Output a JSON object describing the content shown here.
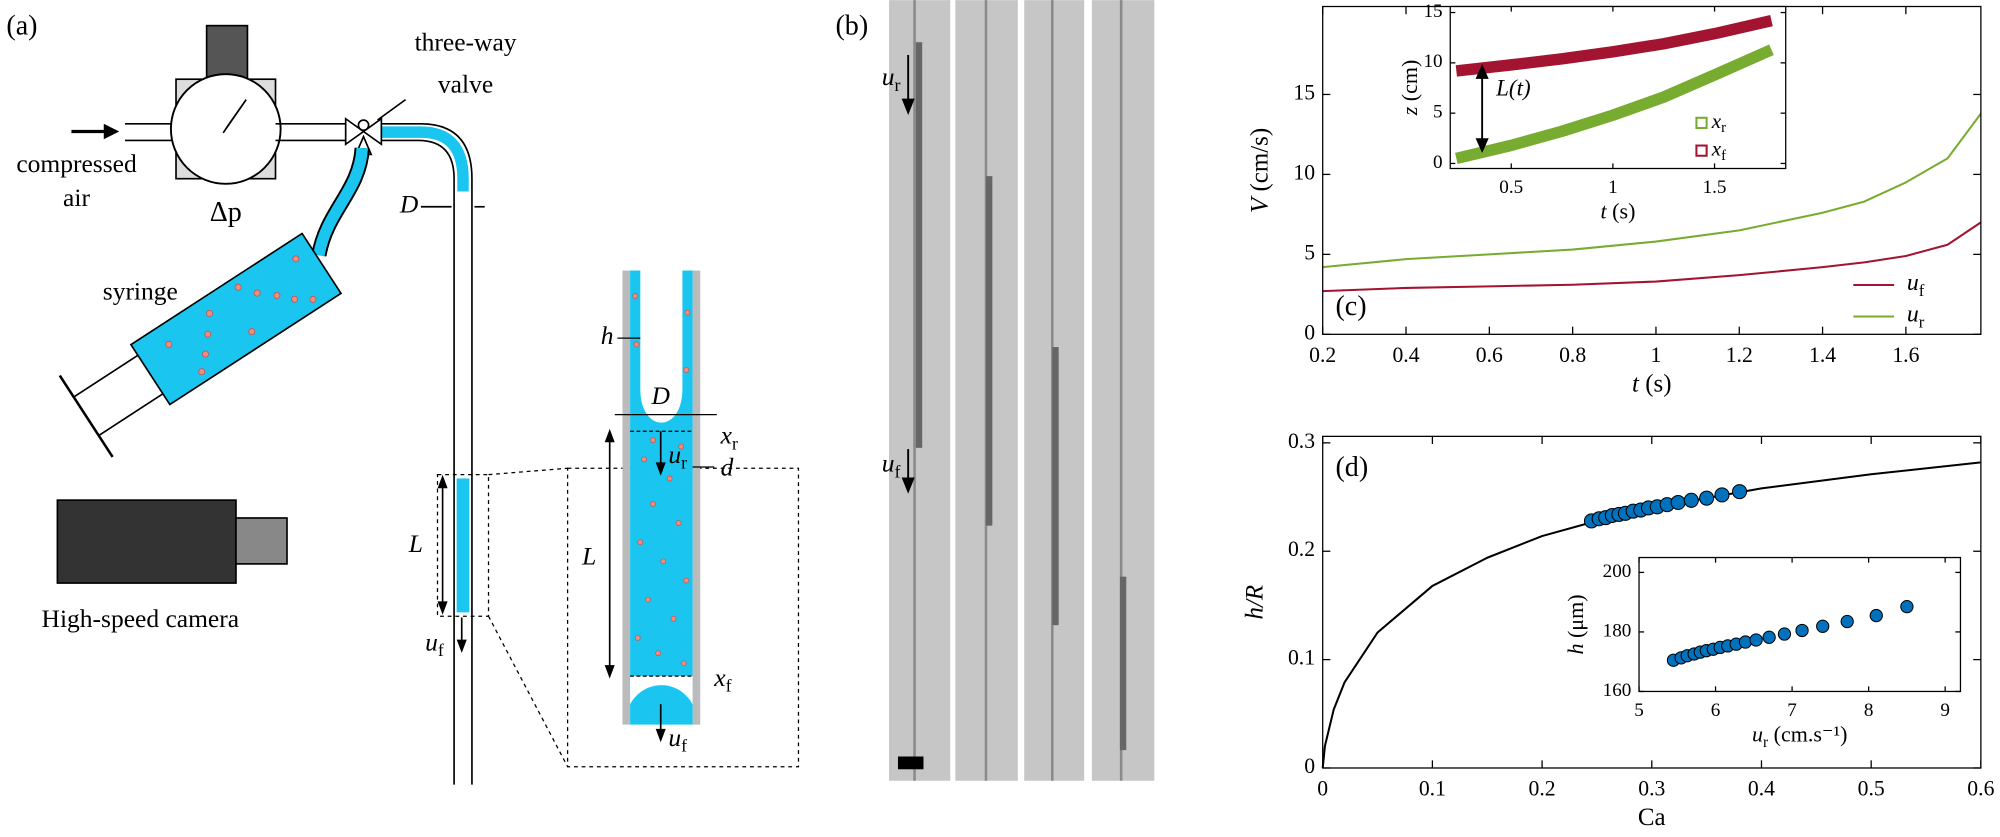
{
  "panel_a": {
    "label": "(a)",
    "compressed_air": [
      "compressed",
      "air"
    ],
    "delta_p": "Δp",
    "valve": [
      "three-way",
      "valve"
    ],
    "syringe": "syringe",
    "camera": "High-speed camera",
    "D": "D",
    "L": "L",
    "u_f": {
      "sym": "u",
      "sub": "f"
    },
    "inset": {
      "h": "h",
      "D": "D",
      "x_r": {
        "sym": "x",
        "sub": "r"
      },
      "u_r": {
        "sym": "u",
        "sub": "r"
      },
      "d": "d",
      "L": "L",
      "x_f": {
        "sym": "x",
        "sub": "f"
      },
      "u_f": {
        "sym": "u",
        "sub": "f"
      }
    }
  },
  "panel_b": {
    "label": "(b)",
    "u_r": {
      "sym": "u",
      "sub": "r"
    },
    "u_f": {
      "sym": "u",
      "sub": "f"
    }
  },
  "chart_data": [
    {
      "type": "line",
      "panel_label": "(c)",
      "xlabel": {
        "sym": "t",
        "unit": "(s)"
      },
      "ylabel": {
        "sym": "V",
        "unit": "(cm/s)"
      },
      "x": [
        0.2,
        0.4,
        0.6,
        0.8,
        1.0,
        1.2,
        1.4,
        1.5,
        1.6,
        1.7,
        1.78
      ],
      "series": [
        {
          "name": {
            "sym": "u",
            "sub": "f"
          },
          "color": "#a2142f",
          "values": [
            2.7,
            2.9,
            3.0,
            3.1,
            3.3,
            3.7,
            4.2,
            4.5,
            4.9,
            5.6,
            7.0
          ]
        },
        {
          "name": {
            "sym": "u",
            "sub": "r"
          },
          "color": "#77ac30",
          "values": [
            4.2,
            4.7,
            5.0,
            5.3,
            5.8,
            6.5,
            7.6,
            8.3,
            9.5,
            11.0,
            13.8
          ]
        }
      ],
      "xlim": [
        0.2,
        1.78
      ],
      "xticks": [
        0.2,
        0.4,
        0.6,
        0.8,
        1,
        1.2,
        1.4,
        1.6
      ],
      "ylim": [
        0,
        20.5
      ],
      "yticks": [
        0,
        5,
        10,
        15
      ],
      "legend": "lower right"
    },
    {
      "type": "line",
      "xlabel": {
        "sym": "t",
        "unit": "(s)"
      },
      "ylabel": {
        "sym": "z",
        "unit": "(cm)"
      },
      "annotation": "L(t)",
      "x": [
        0.23,
        0.5,
        0.75,
        1.0,
        1.25,
        1.5,
        1.78
      ],
      "series": [
        {
          "name": {
            "sym": "x",
            "sub": "r"
          },
          "color": "#77ac30",
          "marker": "square",
          "values": [
            0.5,
            1.8,
            3.2,
            4.8,
            6.6,
            8.8,
            11.3
          ]
        },
        {
          "name": {
            "sym": "x",
            "sub": "f"
          },
          "color": "#a2142f",
          "marker": "square",
          "values": [
            9.2,
            9.8,
            10.4,
            11.1,
            11.9,
            12.9,
            14.2
          ]
        }
      ],
      "xlim": [
        0.2,
        1.85
      ],
      "xticks": [
        0.5,
        1,
        1.5
      ],
      "ylim": [
        -0.5,
        15.6
      ],
      "yticks": [
        0,
        5,
        10,
        15
      ],
      "legend": "lower right"
    },
    {
      "type": "line",
      "panel_label": "(d)",
      "xlabel": {
        "sym": "Ca"
      },
      "ylabel": {
        "sym": "h/R"
      },
      "series": [
        {
          "type": "line",
          "color": "#000000",
          "x": [
            0,
            0.002,
            0.01,
            0.02,
            0.05,
            0.1,
            0.15,
            0.2,
            0.25,
            0.3,
            0.4,
            0.5,
            0.6
          ],
          "values": [
            0,
            0.0202,
            0.0538,
            0.0792,
            0.125,
            0.168,
            0.194,
            0.214,
            0.228,
            0.24,
            0.258,
            0.271,
            0.282
          ]
        },
        {
          "type": "scatter",
          "color": "#0072bd",
          "x": [
            0.245,
            0.252,
            0.258,
            0.264,
            0.27,
            0.276,
            0.283,
            0.29,
            0.297,
            0.305,
            0.314,
            0.324,
            0.336,
            0.35,
            0.364,
            0.38
          ],
          "values": [
            0.228,
            0.23,
            0.231,
            0.233,
            0.234,
            0.235,
            0.237,
            0.238,
            0.24,
            0.241,
            0.243,
            0.245,
            0.247,
            0.249,
            0.252,
            0.255
          ]
        }
      ],
      "xlim": [
        0,
        0.6
      ],
      "xticks": [
        0,
        0.1,
        0.2,
        0.3,
        0.4,
        0.5,
        0.6
      ],
      "ylim": [
        0,
        0.306
      ],
      "yticks": [
        0,
        0.1,
        0.2,
        0.3
      ]
    },
    {
      "type": "scatter",
      "xlabel": {
        "sym": "u",
        "sub": "r",
        "unit": "(cm.s⁻¹)"
      },
      "ylabel": {
        "sym": "h",
        "unit": "(μm)"
      },
      "series": [
        {
          "type": "scatter",
          "color": "#0072bd",
          "x": [
            5.45,
            5.55,
            5.63,
            5.72,
            5.8,
            5.88,
            5.97,
            6.06,
            6.16,
            6.27,
            6.39,
            6.53,
            6.7,
            6.9,
            7.13,
            7.4,
            7.72,
            8.1,
            8.5
          ],
          "values": [
            170.5,
            171.3,
            172,
            172.6,
            173.2,
            173.7,
            174.2,
            174.8,
            175.3,
            175.9,
            176.6,
            177.3,
            178.2,
            179.3,
            180.5,
            181.9,
            183.5,
            185.5,
            188.5
          ]
        }
      ],
      "xlim": [
        5,
        9.2
      ],
      "xticks": [
        5,
        6,
        7,
        8,
        9
      ],
      "ylim": [
        160,
        205
      ],
      "yticks": [
        160,
        180,
        200
      ]
    }
  ]
}
